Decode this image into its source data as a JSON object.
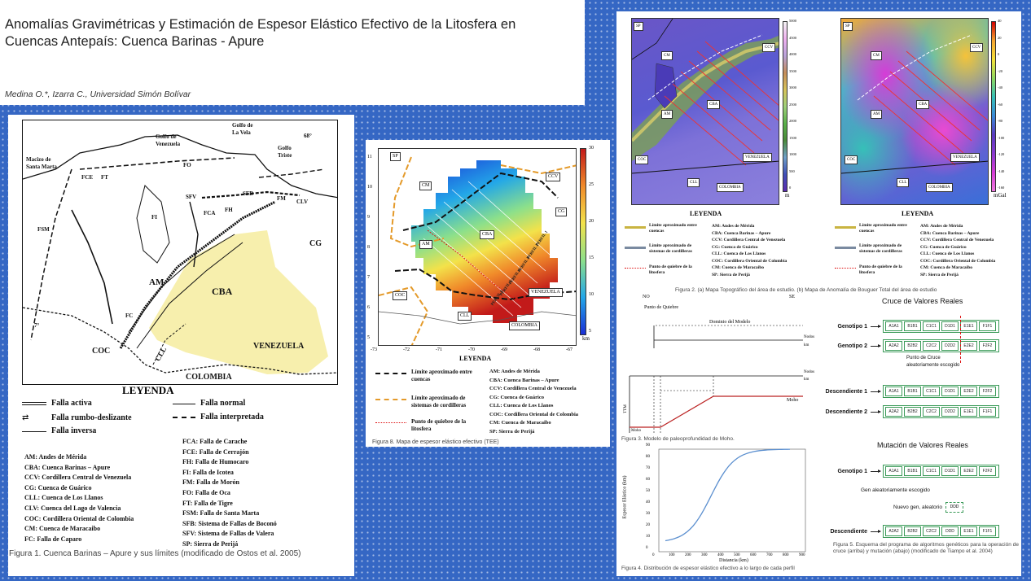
{
  "title": {
    "line1": "Anomalías Gravimétricas y Estimación de Espesor Elástico Efectivo de la Litosfera en",
    "line2": "Cuencas Antepaís: Cuenca Barinas - Apure",
    "authors": "Medina O.*, Izarra C., Universidad Simón Bolívar"
  },
  "fig1": {
    "labels": {
      "golfo_ven": "Golfo de\nVenezuela",
      "golfo_vela": "Golfo de\nLa Vela",
      "macizo": "Macizo de\nSanta Marta",
      "golfo_triste": "Golfo\nTriste",
      "deg68": "68°",
      "deg7": "7°",
      "fce": "FCE",
      "ft": "FT",
      "fo": "FO",
      "fh": "FH",
      "sfv": "SFV",
      "fca": "FCA",
      "sfb": "SFB",
      "fm": "FM",
      "clv": "CLV",
      "fsm": "FSM",
      "fi": "FI",
      "am": "AM",
      "fc": "FC",
      "cba": "CBA",
      "cg": "CG",
      "coc": "COC",
      "cll": "CLL",
      "venezuela": "VENEZUELA",
      "colombia": "COLOMBIA"
    },
    "legend_title": "LEYENDA",
    "faults": [
      "Falla activa",
      "Falla normal",
      "Falla rumbo-deslizante",
      "Falla interpretada",
      "Falla inversa"
    ],
    "abbr_left": [
      "AM: Andes de Mérida",
      "CBA: Cuenca Barinas – Apure",
      "CCV: Cordillera Central de Venezuela",
      "CG: Cuenca de Guárico",
      "CLL: Cuenca de Los Llanos",
      "CLV: Cuenca del Lago de Valencia",
      "COC: Cordillera Oriental de Colombia",
      "CM: Cuenca de Maracaibo",
      "FC: Falla de Caparo"
    ],
    "abbr_right": [
      "FCA: Falla de Carache",
      "FCE: Falla de Cerrajón",
      "FH: Falla de Humocaro",
      "FI: Falla de Icotea",
      "FM: Falla de Morón",
      "FO: Falla de Oca",
      "FT: Falla de Tigre",
      "FSM: Falla de Santa Marta",
      "SFB: Sistema de Fallas de Boconó",
      "SFV: Sistema de Fallas de Valera",
      "SP: Sierra de Perijá"
    ],
    "caption": "Figura 1. Cuenca Barinas – Apure y sus límites (modificado de Ostos et al. 2005)"
  },
  "fig8": {
    "colorbar": [
      "30",
      "25",
      "20",
      "15",
      "10",
      "5"
    ],
    "unit": "km",
    "yticks": [
      "11",
      "10",
      "9",
      "8",
      "7",
      "6",
      "5"
    ],
    "xticks": [
      "-73",
      "-72",
      "-71",
      "-70",
      "-69",
      "-68",
      "-67"
    ],
    "boxes": {
      "sp": "SP",
      "cm": "CM",
      "ccv": "CCV",
      "cg": "CG",
      "am": "AM",
      "cba": "CBA",
      "coc": "COC",
      "cll": "CLL",
      "venezuela": "VENEZUELA",
      "colombia": "COLOMBIA"
    },
    "perfiles": [
      "PERFIL 1",
      "PERFIL 2",
      "PERFIL 3",
      "PERFIL 4",
      "PERFIL 5",
      "PERFIL 6"
    ],
    "legend_title": "LEYENDA",
    "legend_items": [
      "Límite aproximado entre cuencas",
      "Límite aproximado de sistemas de cordilleras",
      "Punto de quiebre de la litosfera"
    ],
    "abbr": [
      "AM: Andes de Mérida",
      "CBA: Cuenca Barinas – Apure",
      "CCV: Cordillera Central de Venezuela",
      "CG: Cuenca de Guárico",
      "CLL: Cuenca de Los Llanos",
      "COC: Cordillera Oriental de Colombia",
      "CM: Cuenca de Maracaibo",
      "SP: Sierra de Perijá"
    ],
    "caption": "Figura 8. Mapa de espesor elástico efectivo (TEE)"
  },
  "fig2": {
    "topo_bar": [
      "5000",
      "4500",
      "4000",
      "3500",
      "3000",
      "2500",
      "2000",
      "1500",
      "1000",
      "500",
      "0"
    ],
    "topo_unit": "m",
    "grav_bar": [
      "40",
      "20",
      "0",
      "-20",
      "-40",
      "-60",
      "-80",
      "-100",
      "-120",
      "-140",
      "-160"
    ],
    "grav_unit": "mGal",
    "legend_title": "LEYENDA",
    "legend_items": [
      "Límite aproximado entre cuencas",
      "Límite aproximado de sistemas de cordilleras",
      "Punto de quiebre de la litosfera"
    ],
    "abbr": [
      "AM: Andes de Mérida",
      "CBA: Cuenca Barinas – Apure",
      "CCV: Cordillera Central de Venezuela",
      "CG: Cuenca de Guárico",
      "CLL: Cuenca de Los Llanos",
      "COC: Cordillera Oriental de Colombia",
      "CM: Cuenca de Maracaibo",
      "SP: Sierra de Perijá"
    ],
    "caption": "Figura 2. (a) Mapa Topográfico del área de estudio. (b) Mapa de Anomalía de Bouguer Total del área de estudio"
  },
  "fig3": {
    "no": "NO",
    "se": "SE",
    "punto": "Punto de Quiebre",
    "dominio": "Dominio del Modelo",
    "nodos": "Nodos",
    "km": "km",
    "moho": "Moho",
    "ttm": "TTM",
    "caption": "Figura 3. Modelo de paleoprofundidad de Moho."
  },
  "fig4": {
    "ylabel": "Espesor Elástico (km)",
    "xlabel": "Distancia (km)",
    "yticks": [
      "90",
      "80",
      "70",
      "60",
      "50",
      "40",
      "30",
      "20",
      "10",
      "0"
    ],
    "xticks": [
      "0",
      "100",
      "200",
      "300",
      "400",
      "500",
      "600",
      "700",
      "800",
      "900"
    ],
    "caption": "Figura 4. Distribución de espesor elástico efectivo a lo largo de cada perfil"
  },
  "fig5": {
    "cruce_title": "Cruce de Valores Reales",
    "mut_title": "Mutación de Valores Reales",
    "g1": "Genotipo 1",
    "g2": "Genotipo 2",
    "d1": "Descendiente 1",
    "d2": "Descendiente 2",
    "desc": "Descendiente",
    "g1_genes": [
      "A1A1",
      "B1B1",
      "C1C1",
      "D1D1",
      "E1E1",
      "F1F1"
    ],
    "g2_genes": [
      "A2A2",
      "B2B2",
      "C2C2",
      "D2D2",
      "E2E2",
      "F2F2"
    ],
    "d1_genes": [
      "A1A1",
      "B1B1",
      "C1C1",
      "D1D1",
      "E2E2",
      "F2F2"
    ],
    "d2_genes": [
      "A2A2",
      "B2B2",
      "C2C2",
      "D2D2",
      "E1E1",
      "F1F1"
    ],
    "m_g1_genes": [
      "A1A1",
      "B1B1",
      "C1C1",
      "D1D1",
      "E2E2",
      "F2F2"
    ],
    "m_desc_genes": [
      "A2A2",
      "B2B2",
      "C2C2",
      "DDD",
      "E1E1",
      "F1F1"
    ],
    "punto_cruce": "Punto de Cruce\naleatoriamente escogido",
    "gen_aleatorio": "Gen aleatoriamente escogido",
    "nuevo_gen": "Nuevo gen, aleatorio",
    "nuevo_val": "DDD",
    "caption": "Figura 5. Esquema del programa de algoritmos genéticos para la operación de cruce (arriba) y mutación (abajo) (modificado de Tiampo et al. 2004)"
  }
}
